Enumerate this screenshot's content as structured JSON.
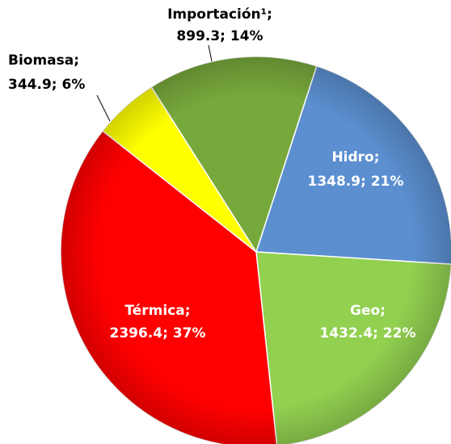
{
  "chart_data": {
    "type": "pie",
    "categories": [
      "Hidro;",
      "Geo;",
      "Térmica;",
      "Biomasa;",
      "Importación¹;"
    ],
    "values": [
      1348.9,
      1432.4,
      2396.4,
      344.9,
      899.3
    ],
    "value_labels": [
      "1348.9; 21%",
      "1432.4; 22%",
      "2396.4; 37%",
      "344.9; 6%",
      "899.3; 14%"
    ],
    "colors": [
      "#5b8fd0",
      "#92d050",
      "#ff0000",
      "#ffff00",
      "#77a83c"
    ]
  }
}
